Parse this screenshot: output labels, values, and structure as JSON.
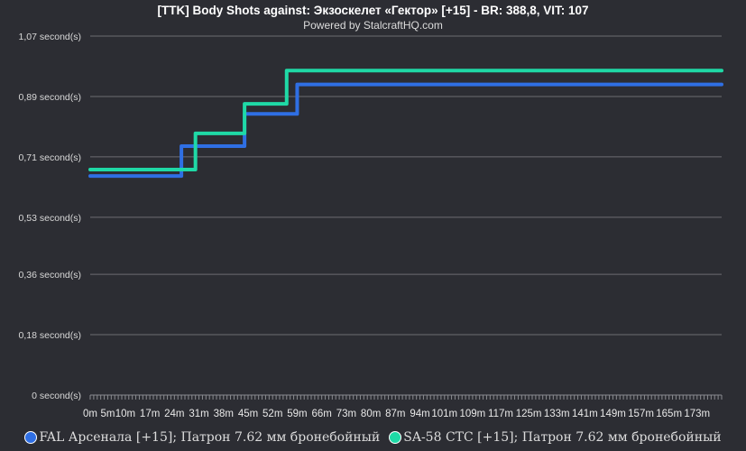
{
  "chart_data": {
    "type": "line",
    "title": "[TTK] Body Shots against: Экзоскелет «Гектор» [+15] - BR: 388,8, VIT: 107",
    "subtitle": "Powered by StalcraftHQ.com",
    "ylim": [
      0,
      1.07
    ],
    "y_ticks": [
      {
        "value": 0,
        "label": "0 second(s)"
      },
      {
        "value": 0.18,
        "label": "0,18 second(s)"
      },
      {
        "value": 0.36,
        "label": "0,36 second(s)"
      },
      {
        "value": 0.53,
        "label": "0,53 second(s)"
      },
      {
        "value": 0.71,
        "label": "0,71 second(s)"
      },
      {
        "value": 0.89,
        "label": "0,89 second(s)"
      },
      {
        "value": 1.07,
        "label": "1,07 second(s)"
      }
    ],
    "xlim": [
      0,
      180
    ],
    "x_ticks": [
      "0m",
      "5m",
      "10m",
      "17m",
      "24m",
      "31m",
      "38m",
      "45m",
      "52m",
      "59m",
      "66m",
      "73m",
      "80m",
      "87m",
      "94m",
      "101m",
      "109m",
      "117m",
      "125m",
      "133m",
      "141m",
      "149m",
      "157m",
      "165m",
      "173m"
    ],
    "x_tick_values": [
      0,
      5,
      10,
      17,
      24,
      31,
      38,
      45,
      52,
      59,
      66,
      73,
      80,
      87,
      94,
      101,
      109,
      117,
      125,
      133,
      141,
      149,
      157,
      165,
      173
    ],
    "grid": true,
    "legend_position": "bottom",
    "series": [
      {
        "name": "FAL Арсенала [+15]; Патрон 7.62 мм бронебойный",
        "color": "#2f6fe4",
        "step_points": [
          [
            0,
            0.653
          ],
          [
            26,
            0.742
          ],
          [
            44,
            0.838
          ],
          [
            59,
            0.926
          ],
          [
            180,
            0.926
          ]
        ]
      },
      {
        "name": "SA-58 СТС [+15]; Патрон 7.62 мм бронебойный",
        "color": "#1fd9a6",
        "step_points": [
          [
            0,
            0.672
          ],
          [
            30,
            0.78
          ],
          [
            44,
            0.868
          ],
          [
            56,
            0.967
          ],
          [
            180,
            0.967
          ]
        ]
      }
    ]
  }
}
